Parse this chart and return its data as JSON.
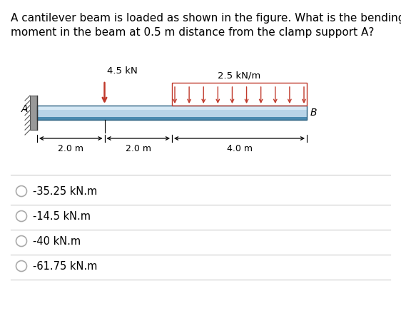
{
  "question_line1": "A cantilever beam is loaded as shown in the figure. What is the bending",
  "question_line2": "moment in the beam at 0.5 m distance from the clamp support A?",
  "bg_color": "#ffffff",
  "beam_color_light": "#b8d4e8",
  "beam_color_mid": "#7ab0d4",
  "beam_color_dark": "#4a8ab0",
  "load_color": "#c0392b",
  "options": [
    "-35.25 kN.m",
    "-14.5 kN.m",
    "-40 kN.m",
    "-61.75 kN.m"
  ],
  "label_A": "A",
  "label_B": "B",
  "point_load_label": "4.5 kN",
  "dist_load_label": "2.5 kN/m",
  "dim_left": "2.0 m",
  "dim_mid": "2.0 m",
  "dim_right": "4.0 m"
}
